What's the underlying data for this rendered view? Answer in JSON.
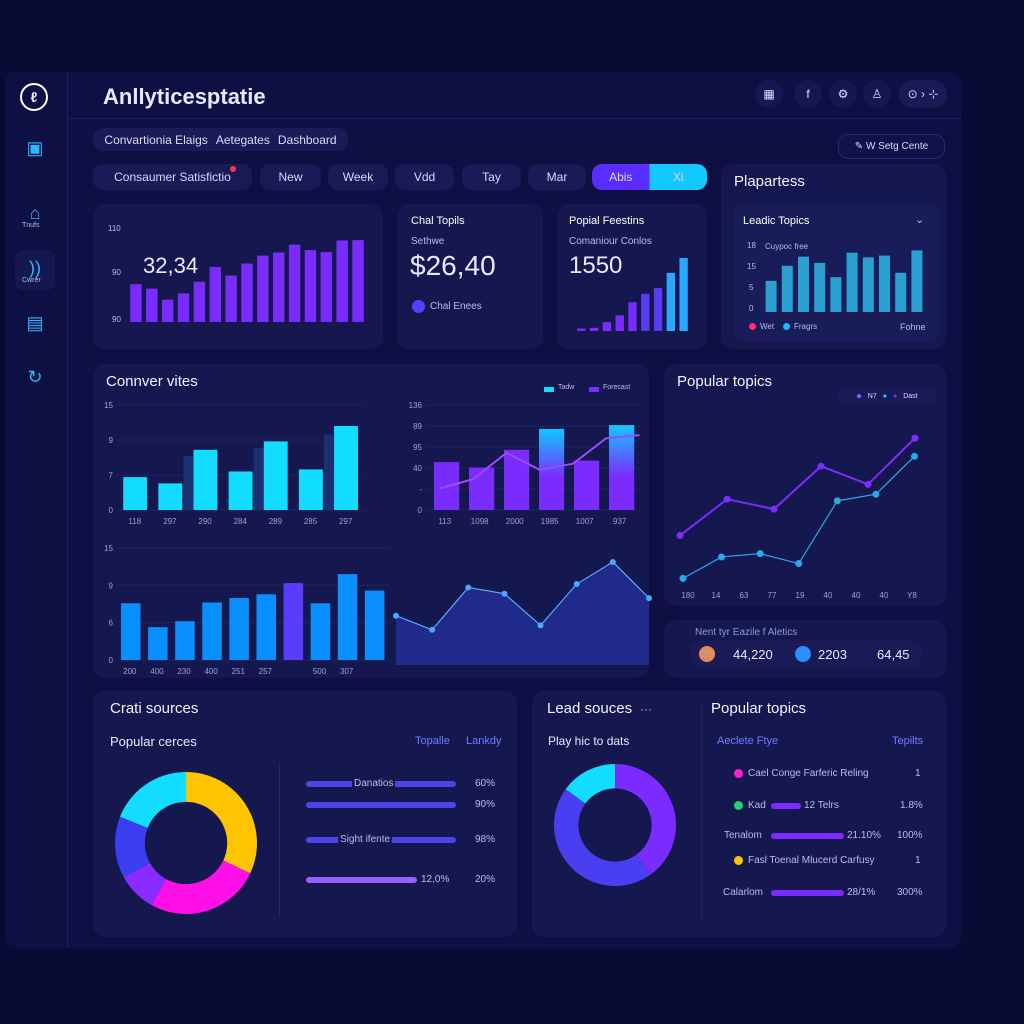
{
  "app": {
    "title": "Anllyticesptatie",
    "logo": "logo-icon"
  },
  "sidebar": {
    "items": [
      {
        "icon": "chat-icon",
        "label": ""
      },
      {
        "icon": "home-icon",
        "label": "Tnufs"
      },
      {
        "icon": "rss-icon",
        "label": "Cwrer"
      },
      {
        "icon": "document-icon",
        "label": ""
      },
      {
        "icon": "refresh-icon",
        "label": ""
      }
    ]
  },
  "top_icons": [
    "calendar-icon",
    "facebook-icon",
    "settings-icon",
    "user-icon"
  ],
  "top_pill": "⊙ › ⊹",
  "breadcrumb": [
    "Convartionia Elaigs",
    "Aetegates",
    "Dashboard"
  ],
  "settings_button": "W Setg Cente",
  "filters": {
    "main": "Consaumer Satisfictio",
    "items": [
      "New",
      "Week",
      "Vdd",
      "Tay",
      "Mar"
    ],
    "active": "Abis",
    "active2": "Xi"
  },
  "kpi1": {
    "value": "32,34",
    "ticks": [
      "110",
      "90",
      "90"
    ]
  },
  "kpi2": {
    "title": "Chal Topils",
    "label": "Sethwe",
    "value": "$26,40",
    "footer": "Chal Enees"
  },
  "kpi3": {
    "title": "Popial Feestins",
    "label": "Comaniour Conlos",
    "value": "1550"
  },
  "plapartess": {
    "title": "Plapartess",
    "subtitle": "Leadic Topics",
    "caption": "Cuypoc free",
    "ticks": [
      "18",
      "15",
      "5",
      "0"
    ],
    "legend": [
      "Wet",
      "Fragrs"
    ],
    "right": "Fohne"
  },
  "conversion": {
    "title": "Connver vites",
    "legend": [
      "Tadw",
      "Forecast"
    ],
    "left_ticks": [
      "15",
      "9",
      "7",
      "0"
    ],
    "left_x": [
      "118",
      "297",
      "290",
      "284",
      "289",
      "285",
      "297"
    ],
    "right_ticks": [
      "136",
      "89",
      "95",
      "40",
      "-",
      "0"
    ],
    "right_x": [
      "113",
      "1098",
      "2000",
      "1985",
      "1007",
      "937"
    ],
    "bottom_ticks": [
      "15",
      "9",
      "6",
      "0"
    ],
    "bottom_x": [
      "200",
      "400",
      "230",
      "400",
      "251",
      "257",
      "500",
      "307"
    ]
  },
  "popular_topics": {
    "title": "Popular topics",
    "legend": [
      "N7",
      "",
      "Dast"
    ],
    "x": [
      "180",
      "14",
      "63",
      "77",
      "19",
      "40",
      "40",
      "40",
      "Y8"
    ]
  },
  "metrics": {
    "title": "Nent tyr Eazile f Aletics",
    "items": [
      {
        "icon": "cart-icon",
        "value": "44,220"
      },
      {
        "icon": "globe-icon",
        "value": "2203"
      },
      {
        "icon": "",
        "value": "64,45"
      }
    ]
  },
  "chat_sources": {
    "title": "Crati sources",
    "subtitle": "Popular cerces",
    "cols": [
      "Topalle",
      "Lankdy"
    ],
    "rows": [
      {
        "label": "Danatios",
        "value": "60%"
      },
      {
        "label": "",
        "value": "90%"
      },
      {
        "label": "Sight ifente",
        "value": "98%"
      },
      {
        "label": "12,0%",
        "value": "20%"
      }
    ]
  },
  "lead_sources": {
    "title": "Lead souces",
    "more": "···",
    "subtitle": "Play hic to dats"
  },
  "popular_topics2": {
    "title": "Popular topics",
    "cols": [
      "Aeclete Ftye",
      "Tepilts"
    ],
    "rows": [
      {
        "dot": "#ff1fd0",
        "label": "Cael Conge Farferic Reling",
        "mid": "",
        "value": "1"
      },
      {
        "dot": "#22d36b",
        "label": "Kad",
        "mid": "12 Telrs",
        "value": "1.8%"
      },
      {
        "dot": "",
        "label": "Tenalom",
        "mid": "21.10%",
        "value": "100%"
      },
      {
        "dot": "#ffc400",
        "label": "Fasl Toenal Mlucerd Carfusy",
        "mid": "",
        "value": "1"
      },
      {
        "dot": "",
        "label": "Calarlom",
        "mid": "28/1%",
        "value": "300%"
      }
    ]
  },
  "colors": {
    "bg": "#0a0b35",
    "card": "#15184e",
    "purple": "#7a2cff",
    "cyan": "#12dcff",
    "blue": "#0a8fff",
    "yellow": "#ffc400",
    "magenta": "#ff10e8"
  },
  "chart_data": [
    {
      "type": "bar",
      "id": "kpi1",
      "values": [
        110,
        97,
        65,
        83,
        117,
        160,
        135,
        170,
        193,
        202,
        225,
        209,
        203,
        237,
        238
      ]
    },
    {
      "type": "bar",
      "id": "kpi3",
      "values": [
        7,
        9,
        25,
        44,
        81,
        105,
        121,
        164,
        206
      ]
    },
    {
      "type": "bar",
      "id": "plapartess",
      "ylim": [
        0,
        18
      ],
      "values": [
        8.5,
        12.6,
        15.1,
        13.4,
        9.5,
        16.2,
        14.9,
        15.4,
        10.7,
        16.8
      ]
    },
    {
      "type": "bar",
      "id": "conv_left",
      "ylim": [
        0,
        15
      ],
      "values": [
        4.7,
        3.8,
        8.6,
        5.5,
        9.8,
        5.8,
        12
      ]
    },
    {
      "type": "bar",
      "id": "conv_right",
      "ylim": [
        0,
        136
      ],
      "values": [
        62,
        55,
        78,
        105,
        64,
        110
      ],
      "line": [
        28,
        40,
        74,
        52,
        60,
        93,
        97
      ]
    },
    {
      "type": "bar",
      "id": "conv_bottom",
      "ylim": [
        0,
        15
      ],
      "values": [
        7.6,
        4.4,
        5.2,
        7.7,
        8.3,
        8.8,
        10.3,
        7.6,
        11.5,
        9.3
      ]
    },
    {
      "type": "area",
      "id": "area",
      "values": [
        56,
        40,
        88,
        81,
        45,
        92,
        117,
        76
      ]
    },
    {
      "type": "line",
      "id": "popular",
      "series": [
        {
          "values": [
            30,
            52,
            46,
            72,
            61,
            89
          ]
        },
        {
          "values": [
            4,
            17,
            19,
            13,
            51,
            55,
            78
          ]
        }
      ]
    },
    {
      "type": "pie",
      "id": "donut_left",
      "values": [
        32,
        26,
        9,
        14,
        19
      ],
      "colors": [
        "#ffc400",
        "#ff10e8",
        "#8a2cff",
        "#3a3df0",
        "#12dcff"
      ]
    },
    {
      "type": "pie",
      "id": "donut_right",
      "values": [
        40,
        45,
        15
      ],
      "colors": [
        "#7a2cff",
        "#4a3ff0",
        "#12dcff"
      ]
    }
  ]
}
